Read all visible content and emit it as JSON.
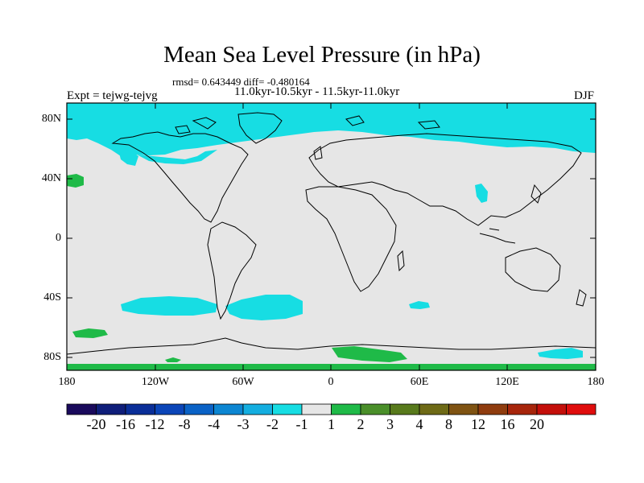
{
  "title": "Mean Sea Level Pressure (in hPa)",
  "stats_line": "rmsd= 0.643449 diff= -0.480164",
  "period_line": "11.0kyr-10.5kyr - 11.5kyr-11.0kyr",
  "experiment": "Expt = tejwg-tejvg",
  "season": "DJF",
  "lat_labels": [
    "80N",
    "40N",
    "0",
    "40S",
    "80S"
  ],
  "lon_labels": [
    "180",
    "120W",
    "60W",
    "0",
    "60E",
    "120E",
    "180"
  ],
  "colorbar": {
    "colors": [
      "#1a0a5c",
      "#0f1e7a",
      "#0a2e98",
      "#0b45b8",
      "#0a62c6",
      "#0c86d2",
      "#14aee0",
      "#17dde3",
      "#e6e6e6",
      "#1fba48",
      "#4a8f2a",
      "#587a1c",
      "#6e6a16",
      "#7f5312",
      "#8f3c0e",
      "#a7250b",
      "#c40f0a",
      "#e00d0d"
    ],
    "labels": [
      "-20",
      "-16",
      "-12",
      "-8",
      "-4",
      "-3",
      "-2",
      "-1",
      "1",
      "2",
      "3",
      "4",
      "8",
      "12",
      "16",
      "20"
    ]
  },
  "map_colors": {
    "background": "#e6e6e6",
    "negative_anomaly": "#17dde3",
    "positive_anomaly": "#1fba48",
    "strong_negative": "#14aee0"
  }
}
